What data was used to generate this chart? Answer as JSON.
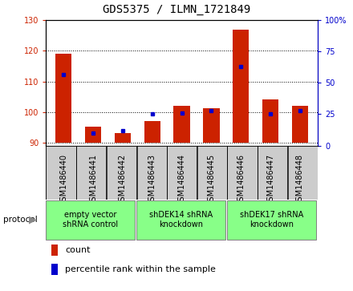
{
  "title": "GDS5375 / ILMN_1721849",
  "samples": [
    "GSM1486440",
    "GSM1486441",
    "GSM1486442",
    "GSM1486443",
    "GSM1486444",
    "GSM1486445",
    "GSM1486446",
    "GSM1486447",
    "GSM1486448"
  ],
  "counts": [
    119.0,
    95.2,
    93.2,
    97.0,
    102.0,
    101.2,
    127.0,
    104.0,
    102.0
  ],
  "percentile_ranks": [
    57,
    10,
    12,
    25,
    26,
    28,
    63,
    25,
    28
  ],
  "ylim_left": [
    89,
    130
  ],
  "ylim_right": [
    0,
    100
  ],
  "yticks_left": [
    90,
    100,
    110,
    120,
    130
  ],
  "yticks_right": [
    0,
    25,
    50,
    75,
    100
  ],
  "bar_color": "#cc2200",
  "dot_color": "#0000cc",
  "bar_width": 0.55,
  "baseline": 90,
  "groups": [
    {
      "label": "empty vector\nshRNA control",
      "start": 0,
      "end": 3
    },
    {
      "label": "shDEK14 shRNA\nknockdown",
      "start": 3,
      "end": 6
    },
    {
      "label": "shDEK17 shRNA\nknockdown",
      "start": 6,
      "end": 9
    }
  ],
  "protocol_label": "protocol",
  "legend_count_label": "count",
  "legend_pct_label": "percentile rank within the sample",
  "plot_bg_color": "#ffffff",
  "tick_area_bg": "#cccccc",
  "group_bg_color": "#88ff88",
  "title_fontsize": 10,
  "tick_fontsize": 7,
  "label_fontsize": 8
}
